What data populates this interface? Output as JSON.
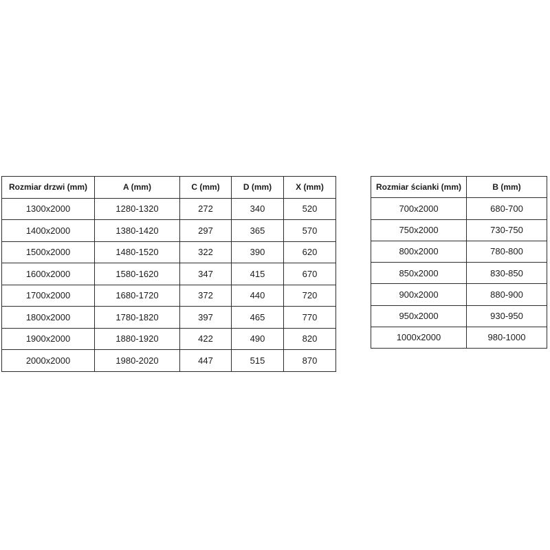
{
  "page": {
    "background_color": "#ffffff",
    "border_color": "#2b2b2b",
    "text_color": "#1a1a1a"
  },
  "door_table": {
    "headers": [
      "Rozmiar drzwi (mm)",
      "A (mm)",
      "C (mm)",
      "D (mm)",
      "X (mm)"
    ],
    "rows": [
      [
        "1300x2000",
        "1280-1320",
        "272",
        "340",
        "520"
      ],
      [
        "1400x2000",
        "1380-1420",
        "297",
        "365",
        "570"
      ],
      [
        "1500x2000",
        "1480-1520",
        "322",
        "390",
        "620"
      ],
      [
        "1600x2000",
        "1580-1620",
        "347",
        "415",
        "670"
      ],
      [
        "1700x2000",
        "1680-1720",
        "372",
        "440",
        "720"
      ],
      [
        "1800x2000",
        "1780-1820",
        "397",
        "465",
        "770"
      ],
      [
        "1900x2000",
        "1880-1920",
        "422",
        "490",
        "820"
      ],
      [
        "2000x2000",
        "1980-2020",
        "447",
        "515",
        "870"
      ]
    ]
  },
  "wall_table": {
    "headers": [
      "Rozmiar ścianki (mm)",
      "B (mm)"
    ],
    "rows": [
      [
        "700x2000",
        "680-700"
      ],
      [
        "750x2000",
        "730-750"
      ],
      [
        "800x2000",
        "780-800"
      ],
      [
        "850x2000",
        "830-850"
      ],
      [
        "900x2000",
        "880-900"
      ],
      [
        "950x2000",
        "930-950"
      ],
      [
        "1000x2000",
        "980-1000"
      ]
    ]
  }
}
